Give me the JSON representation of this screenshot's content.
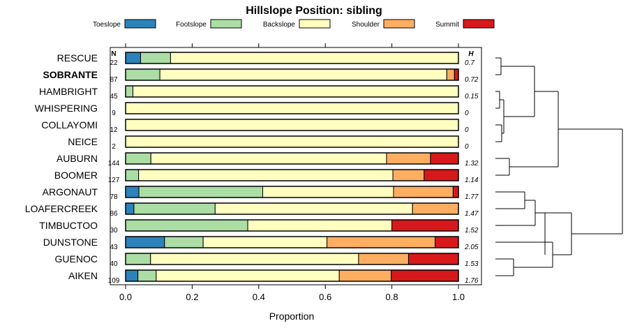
{
  "chart_data": {
    "type": "bar",
    "stacked": true,
    "orientation": "horizontal",
    "title": "Hillslope Position: sibling",
    "xlabel": "Proportion",
    "ylabel": "",
    "xlim": [
      0,
      1
    ],
    "x_ticks": [
      "0.0",
      "0.2",
      "0.4",
      "0.6",
      "0.8",
      "1.0"
    ],
    "legend_position": "top",
    "n_header": "N",
    "h_header": "H",
    "highlight": "SOBRANTE",
    "series": [
      {
        "name": "Toeslope",
        "color": "#2b83ba",
        "values": [
          0.045,
          0,
          0,
          0,
          0,
          0,
          0,
          0,
          0.04,
          0.025,
          0,
          0.117,
          0,
          0.037
        ]
      },
      {
        "name": "Footslope",
        "color": "#abdda4",
        "values": [
          0.09,
          0.103,
          0.022,
          0,
          0,
          0,
          0.076,
          0.039,
          0.372,
          0.244,
          0.367,
          0.116,
          0.075,
          0.055
        ]
      },
      {
        "name": "Backslope",
        "color": "#ffffbf",
        "values": [
          0.865,
          0.862,
          0.978,
          1.0,
          1.0,
          1.0,
          0.708,
          0.764,
          0.393,
          0.593,
          0.433,
          0.372,
          0.625,
          0.55
        ]
      },
      {
        "name": "Shoulder",
        "color": "#fdae61",
        "values": [
          0,
          0.023,
          0,
          0,
          0,
          0,
          0.132,
          0.094,
          0.179,
          0.138,
          0,
          0.325,
          0.15,
          0.156
        ]
      },
      {
        "name": "Summit",
        "color": "#d7191c",
        "values": [
          0,
          0.012,
          0,
          0,
          0,
          0,
          0.084,
          0.103,
          0.016,
          0,
          0.2,
          0.07,
          0.15,
          0.202
        ]
      }
    ],
    "categories": [
      "RESCUE",
      "SOBRANTE",
      "HAMBRIGHT",
      "WHISPERING",
      "COLLAYOMI",
      "NEICE",
      "AUBURN",
      "BOOMER",
      "ARGONAUT",
      "LOAFERCREEK",
      "TIMBUCTOO",
      "DUNSTONE",
      "GUENOC",
      "AIKEN"
    ],
    "n_values": [
      "22",
      "87",
      "45",
      "9",
      "12",
      "2",
      "144",
      "127",
      "78",
      "86",
      "30",
      "43",
      "40",
      "109"
    ],
    "h_values": [
      "0.7",
      "0.72",
      "0.15",
      "0",
      "0",
      "0",
      "1.32",
      "1.14",
      "1.77",
      "1.47",
      "1.52",
      "2.05",
      "1.53",
      "1.76"
    ]
  }
}
